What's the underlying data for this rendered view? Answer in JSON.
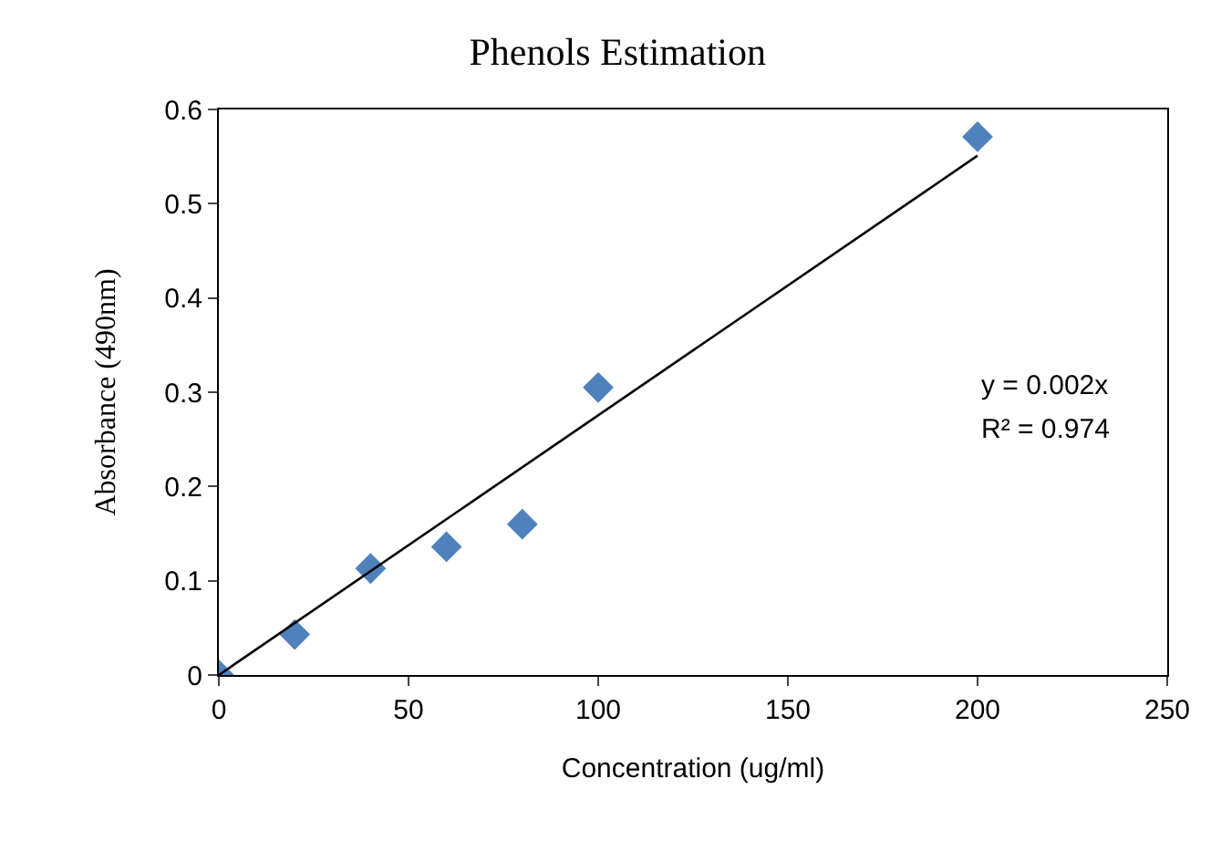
{
  "chart_data": {
    "type": "scatter",
    "title": "Phenols Estimation",
    "xlabel": "Concentration (ug/ml)",
    "ylabel": "Absorbance (490nm)",
    "xlim": [
      0,
      250
    ],
    "xticks": [
      0,
      50,
      100,
      150,
      200,
      250
    ],
    "ylim": [
      0,
      0.6
    ],
    "yticks": [
      0,
      0.1,
      0.2,
      0.3,
      0.4,
      0.5,
      0.6
    ],
    "grid": false,
    "legend": false,
    "marker": "diamond",
    "series": [
      {
        "color": "#4f81bd",
        "x": [
          0,
          20,
          40,
          60,
          80,
          100,
          200
        ],
        "values": [
          0,
          0.043,
          0.113,
          0.136,
          0.16,
          0.305,
          0.571
        ]
      },
      {
        "type": "line",
        "color": "#000000",
        "marker": "none",
        "line_style": "solid",
        "x": [
          0,
          200
        ],
        "values": [
          0,
          0.551
        ]
      }
    ],
    "annotations": [
      "y = 0.002x",
      "R² = 0.974"
    ]
  }
}
